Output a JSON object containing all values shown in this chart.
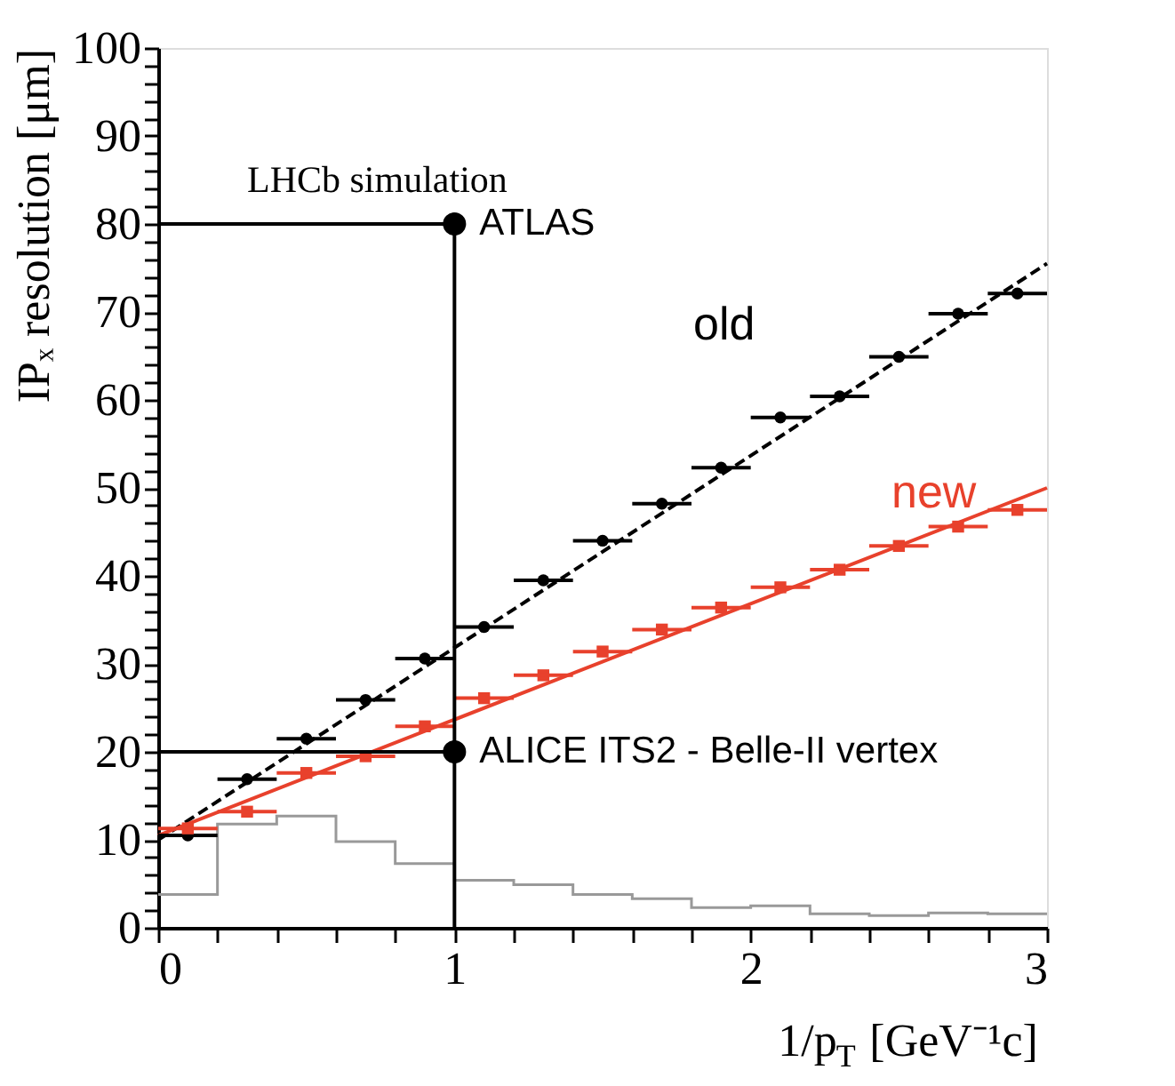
{
  "chart_data": {
    "type": "scatter",
    "xlabel": "1/p$_{T}$ [GeV⁻¹c]",
    "ylabel": "IPₓ resolution [μm]",
    "xlim": [
      0,
      3
    ],
    "ylim": [
      0,
      100
    ],
    "xticks": [
      0,
      {
        "value": 0.2,
        "label": null
      },
      {
        "value": 0.4,
        "label": null
      },
      {
        "value": 0.6,
        "label": null
      },
      {
        "value": 0.8,
        "label": null
      },
      1,
      {
        "value": 1.2,
        "label": null
      },
      {
        "value": 1.4,
        "label": null
      },
      {
        "value": 1.6,
        "label": null
      },
      {
        "value": 1.8,
        "label": null
      },
      2,
      {
        "value": 2.2,
        "label": null
      },
      {
        "value": 2.4,
        "label": null
      },
      {
        "value": 2.6,
        "label": null
      },
      {
        "value": 2.8,
        "label": null
      },
      3
    ],
    "yticks": [
      0,
      {
        "value": 2,
        "label": null
      },
      {
        "value": 4,
        "label": null
      },
      {
        "value": 6,
        "label": null
      },
      {
        "value": 8,
        "label": null
      },
      10,
      {
        "value": 12,
        "label": null
      },
      {
        "value": 14,
        "label": null
      },
      {
        "value": 16,
        "label": null
      },
      {
        "value": 18,
        "label": null
      },
      20,
      {
        "value": 22,
        "label": null
      },
      {
        "value": 24,
        "label": null
      },
      {
        "value": 26,
        "label": null
      },
      {
        "value": 28,
        "label": null
      },
      30,
      {
        "value": 32,
        "label": null
      },
      {
        "value": 34,
        "label": null
      },
      {
        "value": 36,
        "label": null
      },
      {
        "value": 38,
        "label": null
      },
      40,
      {
        "value": 42,
        "label": null
      },
      {
        "value": 44,
        "label": null
      },
      {
        "value": 46,
        "label": null
      },
      {
        "value": 48,
        "label": null
      },
      50,
      {
        "value": 52,
        "label": null
      },
      {
        "value": 54,
        "label": null
      },
      {
        "value": 56,
        "label": null
      },
      {
        "value": 58,
        "label": null
      },
      60,
      {
        "value": 62,
        "label": null
      },
      {
        "value": 64,
        "label": null
      },
      {
        "value": 66,
        "label": null
      },
      {
        "value": 68,
        "label": null
      },
      70,
      {
        "value": 72,
        "label": null
      },
      {
        "value": 74,
        "label": null
      },
      {
        "value": 76,
        "label": null
      },
      {
        "value": 78,
        "label": null
      },
      80,
      {
        "value": 82,
        "label": null
      },
      {
        "value": 84,
        "label": null
      },
      {
        "value": 86,
        "label": null
      },
      {
        "value": 88,
        "label": null
      },
      90,
      {
        "value": 92,
        "label": null
      },
      {
        "value": 94,
        "label": null
      },
      {
        "value": 96,
        "label": null
      },
      {
        "value": 98,
        "label": null
      },
      100
    ],
    "grid": false,
    "annotations": [
      "LHCb simulation",
      {
        "text": "ATLAS",
        "x": 1,
        "y": 80
      },
      {
        "text": "ALICE ITS2 - Belle-II vertex",
        "x": 1,
        "y": 20
      }
    ],
    "series": [
      {
        "type": "histogram",
        "color": "#999999",
        "bins": [
          0,
          0.2,
          0.4,
          0.6,
          0.8,
          1,
          1.2,
          1.4,
          1.6,
          1.8,
          2,
          2.2,
          2.4,
          2.6,
          2.8,
          3
        ],
        "values": [
          3.8,
          11.8,
          12.7,
          9.8,
          7.3,
          5.4,
          4.9,
          3.8,
          3.3,
          2.3,
          2.5,
          1.6,
          1.4,
          1.7,
          1.6
        ]
      },
      {
        "type": "line",
        "color": "#000000",
        "line_style": "dashed",
        "x": [
          0,
          3
        ],
        "values": [
          10,
          75.5
        ]
      },
      {
        "type": "line",
        "color": "#e8412c",
        "line_style": "solid",
        "x": [
          0,
          3
        ],
        "values": [
          10.5,
          50
        ]
      },
      {
        "name": "old",
        "color": "#000000",
        "marker": "circle",
        "x": [
          0.1,
          0.3,
          0.5,
          0.7,
          0.9,
          1.1,
          1.3,
          1.5,
          1.7,
          1.9,
          2.1,
          2.3,
          2.5,
          2.7,
          2.9
        ],
        "values": [
          10.5,
          16.9,
          21.5,
          25.9,
          30.6,
          34.2,
          39.5,
          44,
          48.2,
          52.3,
          58,
          60.4,
          64.9,
          69.8,
          72.1
        ],
        "xerrors": [
          0.1,
          0.1,
          0.1,
          0.1,
          0.1,
          0.1,
          0.1,
          0.1,
          0.1,
          0.1,
          0.1,
          0.1,
          0.1,
          0.1,
          0.1
        ]
      },
      {
        "name": "new",
        "color": "#e8412c",
        "marker": "square",
        "x": [
          0.1,
          0.3,
          0.5,
          0.7,
          0.9,
          1.1,
          1.3,
          1.5,
          1.7,
          1.9,
          2.1,
          2.3,
          2.5,
          2.7,
          2.9
        ],
        "values": [
          11.3,
          13.2,
          17.6,
          19.5,
          22.9,
          26.1,
          28.7,
          31.4,
          33.9,
          36.4,
          38.7,
          40.7,
          43.4,
          45.6,
          47.5
        ],
        "xerrors": [
          0.1,
          0.1,
          0.1,
          0.1,
          0.1,
          0.1,
          0.1,
          0.1,
          0.1,
          0.1,
          0.1,
          0.1,
          0.1,
          0.1,
          0.1
        ]
      },
      {
        "type": "line",
        "color": "#000000",
        "line_style": "solid",
        "x": [
          0,
          1,
          1
        ],
        "values": [
          80,
          80,
          0
        ]
      },
      {
        "type": "line",
        "color": "#000000",
        "line_style": "solid",
        "x": [
          0,
          1
        ],
        "values": [
          20,
          20
        ]
      },
      {
        "type": "scatter",
        "color": "#000000",
        "marker": "circle",
        "x": [
          1,
          1
        ],
        "values": [
          80,
          20
        ]
      }
    ]
  }
}
